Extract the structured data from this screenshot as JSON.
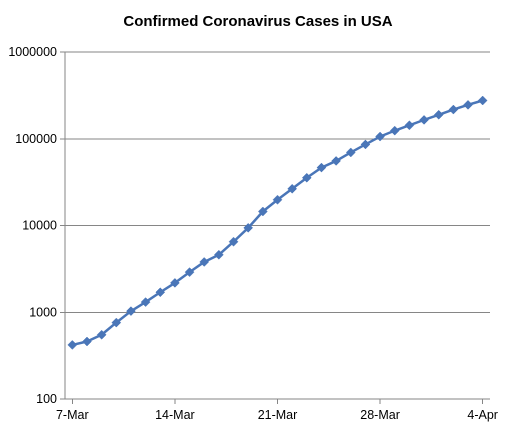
{
  "chart_data": {
    "type": "line",
    "title": "Confirmed Coronavirus Cases in USA",
    "xlabel": "",
    "ylabel": "",
    "y_scale": "log",
    "ylim": [
      100,
      1000000
    ],
    "grid": "horizontal",
    "legend": "none",
    "y_ticks": [
      {
        "value": 100,
        "label": "100"
      },
      {
        "value": 1000,
        "label": "1000"
      },
      {
        "value": 10000,
        "label": "10000"
      },
      {
        "value": 100000,
        "label": "100000"
      },
      {
        "value": 1000000,
        "label": "1000000"
      }
    ],
    "x_ticks": [
      {
        "date": "2020-03-07",
        "label": "7-Mar"
      },
      {
        "date": "2020-03-14",
        "label": "14-Mar"
      },
      {
        "date": "2020-03-21",
        "label": "21-Mar"
      },
      {
        "date": "2020-03-28",
        "label": "28-Mar"
      },
      {
        "date": "2020-04-04",
        "label": "4-Apr"
      }
    ],
    "x": [
      "2020-03-07",
      "2020-03-08",
      "2020-03-09",
      "2020-03-10",
      "2020-03-11",
      "2020-03-12",
      "2020-03-13",
      "2020-03-14",
      "2020-03-15",
      "2020-03-16",
      "2020-03-17",
      "2020-03-18",
      "2020-03-19",
      "2020-03-20",
      "2020-03-21",
      "2020-03-22",
      "2020-03-23",
      "2020-03-24",
      "2020-03-25",
      "2020-03-26",
      "2020-03-27",
      "2020-03-28",
      "2020-03-29",
      "2020-03-30",
      "2020-03-31",
      "2020-04-01",
      "2020-04-02",
      "2020-04-03",
      "2020-04-04"
    ],
    "series": [
      {
        "color": "#4a76b8",
        "marker": "diamond",
        "values": [
          420,
          460,
          550,
          760,
          1030,
          1310,
          1700,
          2180,
          2900,
          3800,
          4600,
          6500,
          9400,
          14500,
          19800,
          26500,
          35500,
          46500,
          55500,
          69500,
          86000,
          106000,
          124000,
          143000,
          165000,
          189000,
          217000,
          246000,
          276000
        ]
      }
    ]
  }
}
